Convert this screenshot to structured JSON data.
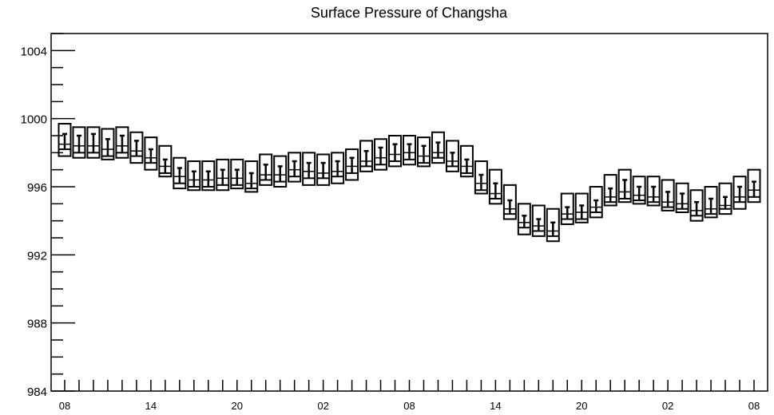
{
  "chart_data": {
    "type": "boxplot",
    "title": "Surface Pressure of Changsha",
    "xlabel": "",
    "ylabel": "",
    "ylim": [
      984,
      1005
    ],
    "yticks": [
      984,
      988,
      992,
      996,
      1000,
      1004
    ],
    "ytick_labels": [
      "984",
      "988",
      "992",
      "996",
      "1000",
      "1004"
    ],
    "x_hours": [
      0,
      48
    ],
    "xticks": [
      0,
      6,
      12,
      18,
      24,
      30,
      36,
      42,
      48
    ],
    "xtick_labels": [
      "08",
      "14",
      "20",
      "02",
      "08",
      "14",
      "20",
      "02",
      "08"
    ],
    "grid": false,
    "legend": "none",
    "colors": {
      "box": "#000000",
      "axis": "#000000",
      "background": "#ffffff"
    },
    "series": [
      {
        "x": [
          0,
          1,
          2,
          3,
          4,
          5,
          6,
          7,
          8,
          9,
          10,
          11,
          12,
          13,
          14,
          15,
          16,
          17,
          18,
          19,
          20,
          21,
          22,
          23,
          24,
          25,
          26,
          27,
          28,
          29,
          30,
          31,
          32,
          33,
          34,
          35,
          36,
          37,
          38,
          39,
          40,
          41,
          42,
          43,
          44,
          45,
          46,
          47,
          48
        ],
        "max": [
          999.7,
          999.5,
          999.5,
          999.4,
          999.5,
          999.2,
          998.9,
          998.4,
          997.7,
          997.5,
          997.5,
          997.6,
          997.6,
          997.5,
          997.9,
          997.8,
          998.0,
          998.0,
          997.9,
          998.0,
          998.2,
          998.7,
          998.8,
          999.0,
          999.0,
          998.9,
          999.2,
          998.7,
          998.4,
          997.5,
          997.0,
          996.1,
          995.0,
          994.9,
          994.7,
          995.6,
          995.6,
          996.0,
          996.7,
          997.0,
          996.6,
          996.6,
          996.4,
          996.2,
          995.8,
          996.0,
          996.2,
          996.6,
          997.0
        ],
        "q3": [
          999.1,
          999.0,
          999.1,
          998.8,
          999.0,
          998.7,
          998.2,
          997.6,
          997.1,
          996.9,
          996.9,
          997.0,
          997.0,
          996.8,
          997.3,
          997.2,
          997.5,
          997.4,
          997.4,
          997.5,
          997.7,
          998.1,
          998.3,
          998.5,
          998.5,
          998.4,
          998.6,
          998.0,
          997.6,
          996.7,
          996.2,
          995.2,
          994.3,
          994.1,
          993.9,
          994.8,
          994.9,
          995.2,
          995.9,
          996.4,
          996.0,
          996.0,
          995.7,
          995.6,
          995.1,
          995.3,
          995.4,
          996.0,
          996.3
        ],
        "median": [
          998.5,
          998.4,
          998.4,
          998.2,
          998.4,
          998.1,
          997.7,
          997.2,
          996.6,
          996.4,
          996.4,
          996.5,
          996.5,
          996.2,
          996.7,
          996.7,
          997.0,
          996.9,
          996.8,
          996.9,
          997.2,
          997.5,
          997.7,
          997.9,
          998.0,
          997.8,
          998.0,
          997.5,
          997.2,
          996.2,
          995.6,
          994.7,
          993.9,
          993.7,
          993.4,
          994.4,
          994.5,
          994.8,
          995.4,
          995.7,
          995.5,
          995.4,
          995.1,
          995.0,
          994.6,
          994.7,
          994.9,
          995.4,
          995.8
        ],
        "q1": [
          998.2,
          998.0,
          998.0,
          997.8,
          998.0,
          997.8,
          997.4,
          996.8,
          996.2,
          996.0,
          996.0,
          996.1,
          996.1,
          995.9,
          996.4,
          996.3,
          996.6,
          996.5,
          996.5,
          996.6,
          996.8,
          997.2,
          997.3,
          997.5,
          997.6,
          997.4,
          997.7,
          997.2,
          996.8,
          995.8,
          995.3,
          994.4,
          993.6,
          993.4,
          993.1,
          994.1,
          994.1,
          994.5,
          995.1,
          995.3,
          995.2,
          995.1,
          994.8,
          994.7,
          994.3,
          994.4,
          994.7,
          995.1,
          995.4
        ],
        "min": [
          997.8,
          997.7,
          997.7,
          997.6,
          997.7,
          997.4,
          997.0,
          996.6,
          995.9,
          995.8,
          995.8,
          995.8,
          995.9,
          995.7,
          996.1,
          996.0,
          996.3,
          996.1,
          996.1,
          996.2,
          996.4,
          996.9,
          997.0,
          997.2,
          997.3,
          997.2,
          997.4,
          996.9,
          996.6,
          995.6,
          995.0,
          994.1,
          993.2,
          993.1,
          992.8,
          993.8,
          993.9,
          994.2,
          994.9,
          995.1,
          995.0,
          994.9,
          994.6,
          994.5,
          994.0,
          994.2,
          994.4,
          994.7,
          995.1
        ]
      }
    ]
  }
}
